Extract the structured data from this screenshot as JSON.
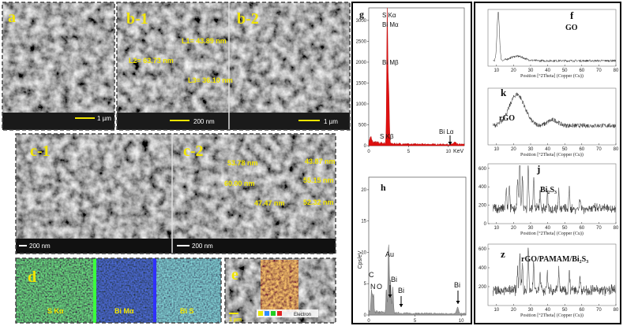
{
  "panels": {
    "a": {
      "label": "a",
      "scale_bar": "1 µm"
    },
    "b1": {
      "label": "b-1",
      "measurements": [
        "L1= 43.89 nm",
        "L2= 63.73 nm",
        "L3= 36.10 nm"
      ],
      "scale_bar": "200 nm"
    },
    "b2": {
      "label": "b-2",
      "scale_bar": "1 µm"
    },
    "c1": {
      "label": "c-1",
      "scale_bar": "200 nm"
    },
    "c2": {
      "label": "c-2",
      "measurements": [
        "53.78 nm",
        "60.00 nm",
        "43.87 nm",
        "55.15 nm",
        "47.47 nm",
        "52.32 nm"
      ],
      "scale_bar": "200 nm"
    },
    "d": {
      "label": "d",
      "maps": [
        "S Kα",
        "Bi Mα",
        "Bi S"
      ]
    },
    "e": {
      "label": "e",
      "scale_bar": "1 µm",
      "legend": "Electron"
    }
  },
  "eds": [
    {
      "label": "g",
      "peaks": [
        "S Kα",
        "Bi Mα",
        "Bi Mβ",
        "S Kβ",
        "Bi Lα"
      ],
      "x_unit": "KeV",
      "xlim": [
        0,
        12
      ],
      "ylim": [
        0,
        3300
      ],
      "xticks": [
        0,
        5,
        10
      ],
      "yticks": [
        0,
        500,
        1000,
        1500,
        2000,
        2500,
        3000
      ]
    },
    {
      "label": "h",
      "y_label": "Cps/eV",
      "peaks": [
        "C",
        "N",
        "O",
        "Au",
        "Bi",
        "Bi",
        "Bi"
      ],
      "xlim": [
        0,
        10.5
      ],
      "ylim": [
        0,
        22
      ],
      "xticks": [
        0,
        5,
        10
      ],
      "yticks": [
        0,
        5,
        10,
        15,
        20
      ]
    }
  ],
  "xrd": [
    {
      "label": "f",
      "name": "GO",
      "xlabel": "Position [°2Theta] (Copper (Cu))",
      "xlim": [
        5,
        80
      ],
      "xticks": [
        10,
        20,
        30,
        40,
        50,
        60,
        70,
        80
      ]
    },
    {
      "label": "k",
      "name": "rGO",
      "xlabel": "Position [°2Theta] (Copper (Cu))",
      "xlim": [
        5,
        80
      ],
      "xticks": [
        10,
        20,
        30,
        40,
        50,
        60,
        70,
        80
      ]
    },
    {
      "label": "j",
      "name": "Bi₂S₃",
      "xlabel": "Position [°2Theta] (Copper (Cu))",
      "xlim": [
        5,
        80
      ],
      "ylim": [
        0,
        650
      ],
      "xticks": [
        10,
        20,
        30,
        40,
        50,
        60,
        70,
        80
      ],
      "yticks": [
        0,
        200,
        400,
        600
      ]
    },
    {
      "label": "z",
      "name": "rGO/PAMAM/Bi₂S₃",
      "xlabel": "Position [°2Theta] (Copper (Cu))",
      "xlim": [
        5,
        80
      ],
      "ylim": [
        0,
        650
      ],
      "xticks": [
        10,
        20,
        30,
        40,
        50,
        60,
        70,
        80
      ],
      "yticks": [
        200,
        400,
        600
      ]
    }
  ]
}
